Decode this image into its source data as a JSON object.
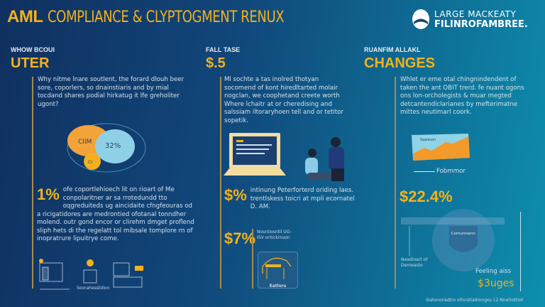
{
  "header": {
    "title_bold": "AML",
    "title_rest": "COMPLIANCE & CLYPTOGMENT RENUX",
    "logo_line1": "LARGE MACKEATY",
    "logo_line2": "FILINROFAMBREE."
  },
  "columns": [
    {
      "kicker": "WHOW BCOUI",
      "heading": "UTER",
      "body": "Why nitme lnare soutlent, the forard dlouh beer sore, coporlers, so dnainstiaris and by mial tocdand shares podial hirkatug it lfe greholiter ugont?",
      "bubbles": [
        "CIIM",
        "32%",
        "CI"
      ],
      "stat": "1%",
      "stat_text": "ofe coportlehioech lit on rioart of Me conpolaritner ar sa rrotedundd tto oqgreduiteds ug aincidaite cfngfeouras od a ricigatidores are medrontied ofotanal tonndher molend. outr gond encor or clirehm dmget proflend sliph hets di the regelatt tol mibsale tomplore rn of inopratrure lipuitrye come.",
      "icon_caption": "Soorahesstdion"
    },
    {
      "kicker": "FALL TASE",
      "heading": "$.5",
      "body": "Ml sochte a tas inolred thotyan socomend of kont hiredltarted molair nogclan, we coophetand creete worth Where lchaitr at or cheredising and salssiam iltoraryhoen tell and or tetitor sopetik.",
      "stat1": "$%",
      "stat1_text": "intinung Peterforterd oriding laes. trentlskess toicri at mpli ecornatel D. AM.",
      "stat2": "$7%",
      "stat2_text": "Nosntiosntil UO-ISV ontickinuon",
      "dome_caption": "Eatlors"
    },
    {
      "kicker": "RUANFIM ALLAKL",
      "heading": "CHANGES",
      "body": "Whlet er eme otal chingnindendent of taken the ant OBIT trerd. fe nuant ogons ons lon-orcholegists & muar megted detcantendiclarianes by mefterimatne mittes neutimarl coork.",
      "card_label": "Saaisson",
      "legend": "Fobmmor",
      "stat": "$22.4%",
      "shield_text": "Comunnercc",
      "left_label": "Neadinart of Demeaste",
      "right_label": "Feeling aiss",
      "right_stat": "$3uges",
      "footnote": "Siatonorisdtro oltnrstiadmnges 12 Nnetrottod"
    }
  ],
  "colors": {
    "gold": "#f3b21c",
    "navy": "#10305f",
    "teal": "#0d8fae"
  }
}
